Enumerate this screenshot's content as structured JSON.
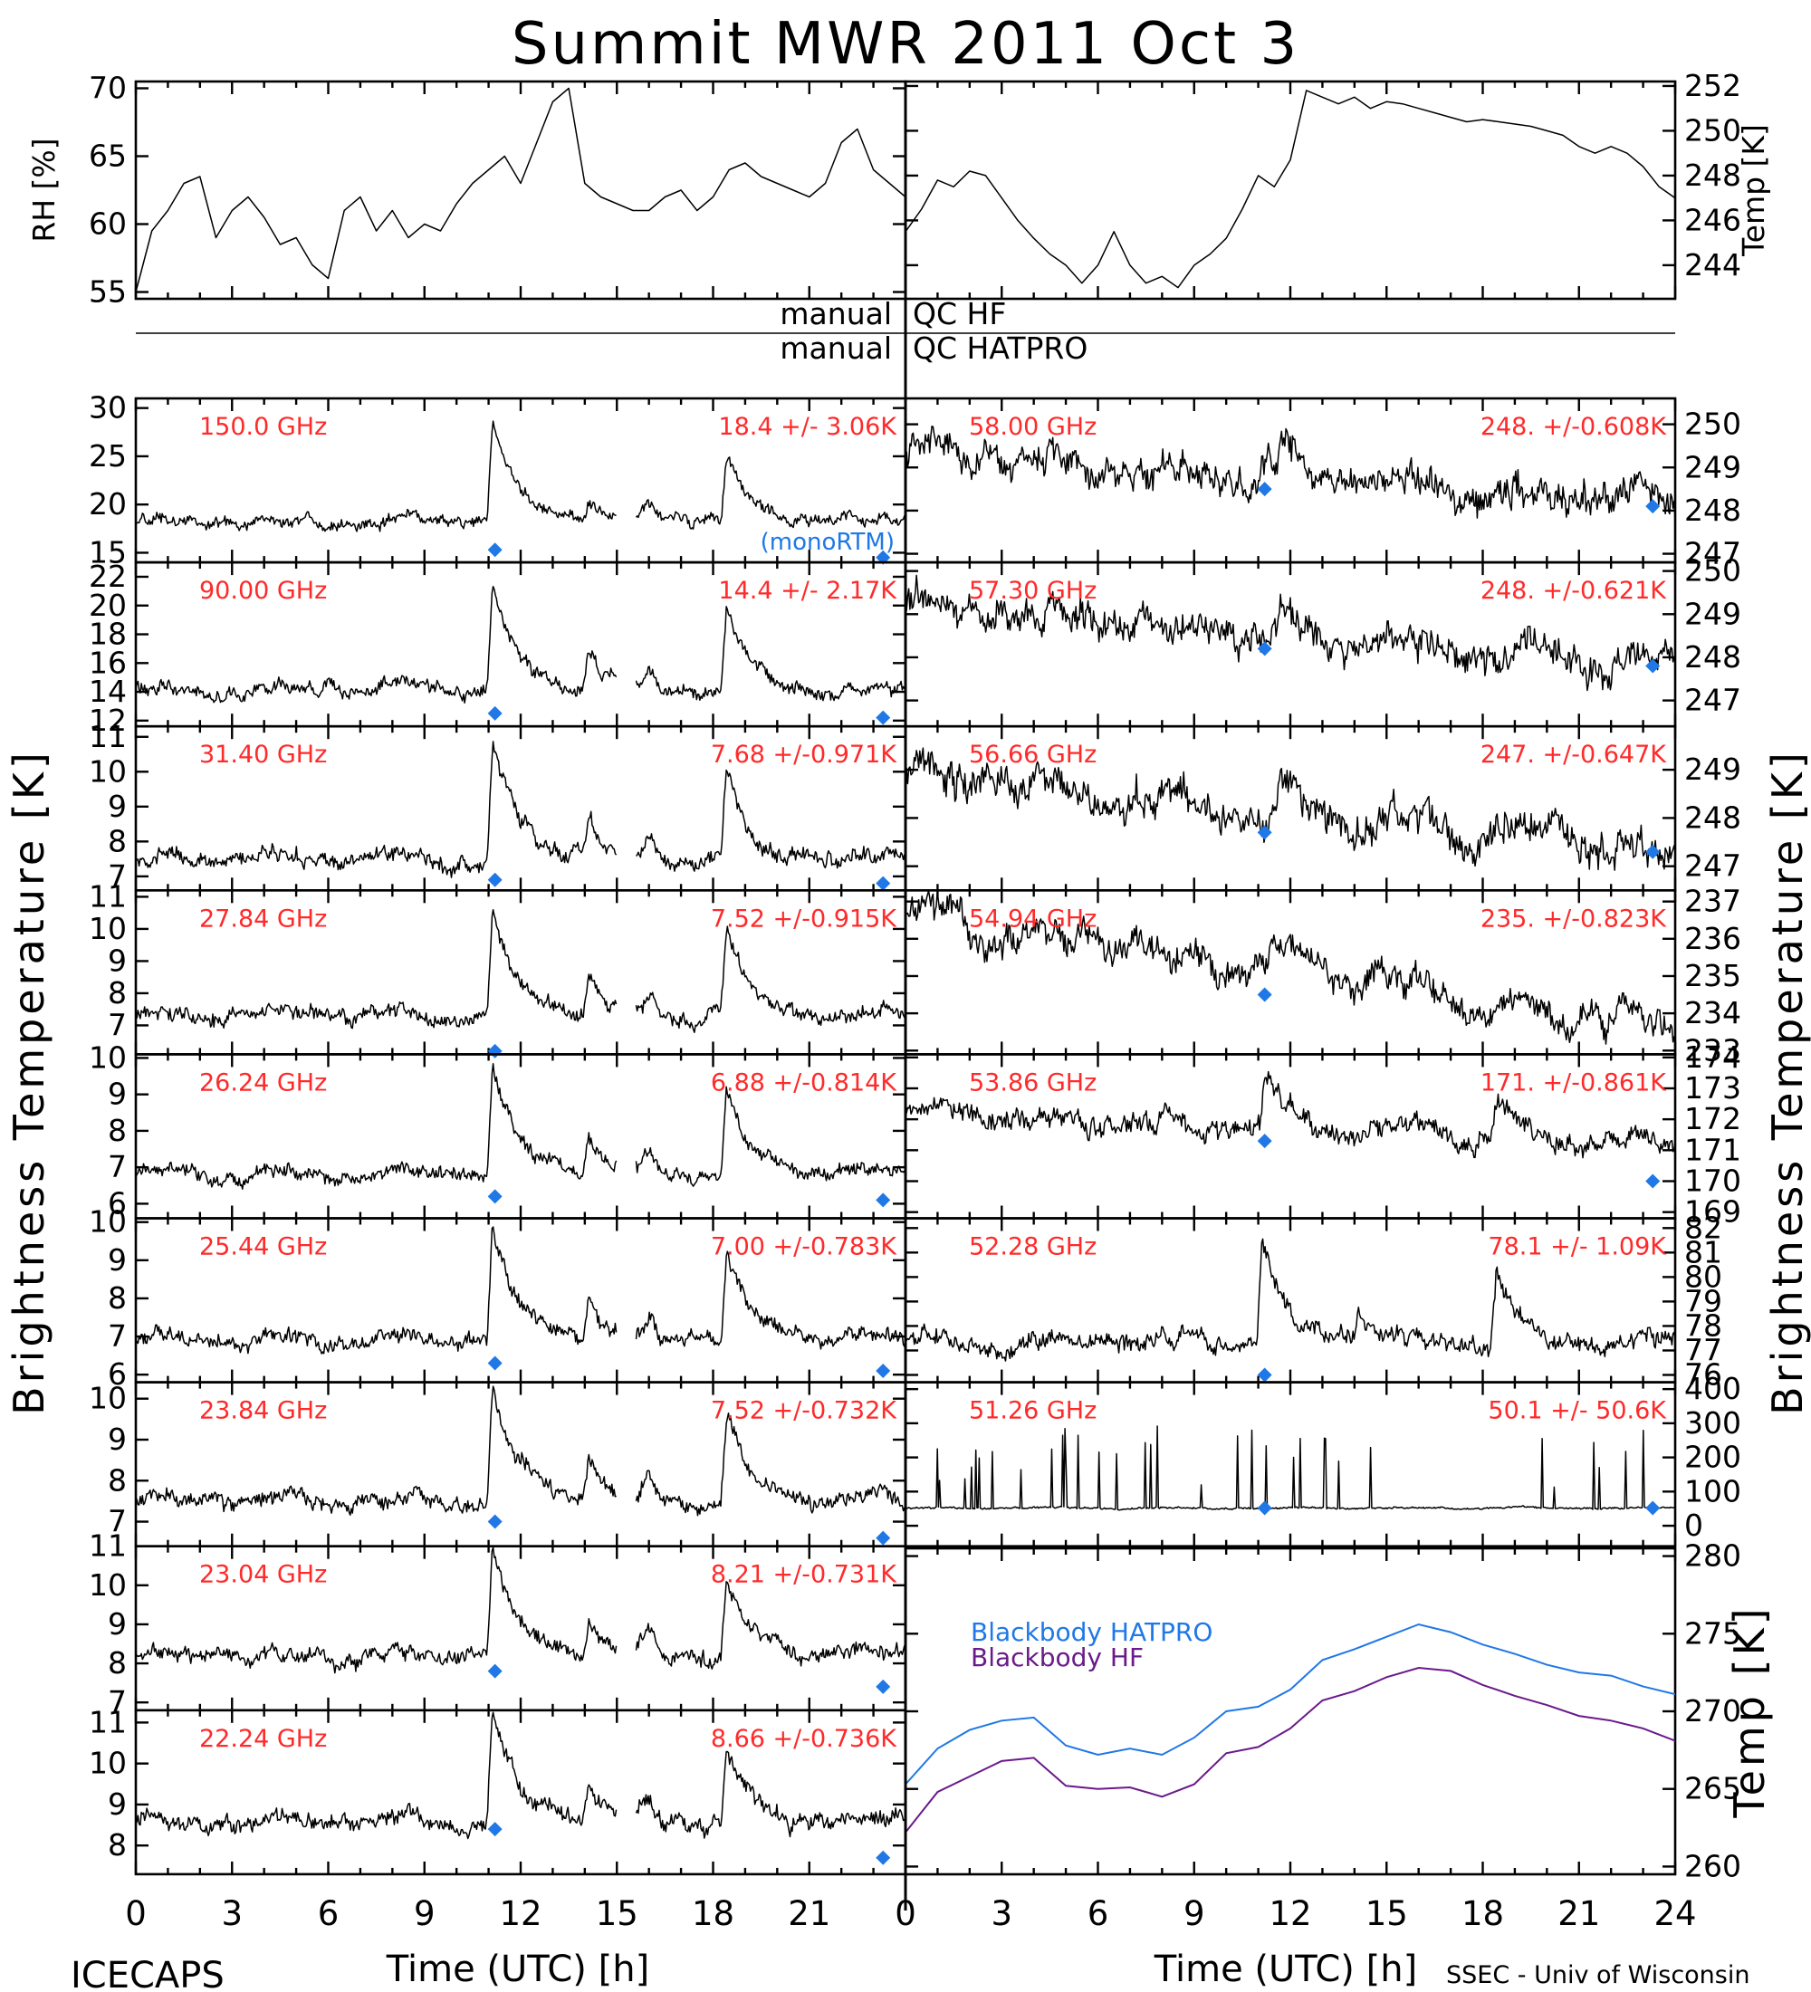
{
  "title": "Summit MWR 2011 Oct  3",
  "footer": {
    "left": "ICECAPS",
    "xlabel": "Time (UTC) [h]",
    "right": "SSEC - Univ of Wisconsin"
  },
  "side_labels": {
    "left": "Brightness Temperature [K]",
    "right": "Brightness Temperature [K]"
  },
  "qc": {
    "row1": {
      "left": "manual",
      "right": "QC HF"
    },
    "row2": {
      "left": "manual",
      "right": "QC HATPRO"
    }
  },
  "x_ticks": [
    "0",
    "3",
    "6",
    "9",
    "12",
    "15",
    "18",
    "21",
    "0",
    "3",
    "6",
    "9",
    "12",
    "15",
    "18",
    "21",
    "24"
  ],
  "chart_data": [
    {
      "id": "rh",
      "type": "line",
      "xlim": [
        0,
        24
      ],
      "ylim": [
        54.5,
        70.5
      ],
      "ylabel": "RH [%]",
      "yticks": [
        55,
        60,
        65,
        70
      ],
      "x": [
        0,
        0.5,
        1,
        1.5,
        2,
        2.5,
        3,
        3.5,
        4,
        4.5,
        5,
        5.5,
        6,
        6.5,
        7,
        7.5,
        8,
        8.5,
        9,
        9.5,
        10,
        10.5,
        11,
        11.5,
        12,
        12.5,
        13,
        13.5,
        14,
        14.5,
        15,
        15.5,
        16,
        16.5,
        17,
        17.5,
        18,
        18.5,
        19,
        19.5,
        20,
        20.5,
        21,
        21.5,
        22,
        22.5,
        23,
        23.5,
        24
      ],
      "y": [
        55,
        59.5,
        61,
        63,
        63.5,
        59,
        61,
        62,
        60.5,
        58.5,
        59,
        57,
        56,
        61,
        62,
        59.5,
        61,
        59,
        60,
        59.5,
        61.5,
        63,
        64,
        65,
        63,
        66,
        69,
        70,
        63,
        62,
        61.5,
        61,
        61,
        62,
        62.5,
        61,
        62,
        64,
        64.5,
        63.5,
        63,
        62.5,
        62,
        63,
        66,
        67,
        64,
        63,
        62
      ]
    },
    {
      "id": "temp",
      "type": "line",
      "xlim": [
        0,
        24
      ],
      "ylim": [
        242.5,
        252.2
      ],
      "ylabel": "Temp [K]",
      "yticks": [
        244,
        246,
        248,
        250,
        252
      ],
      "x": [
        0,
        0.5,
        1,
        1.5,
        2,
        2.5,
        3,
        3.5,
        4,
        4.5,
        5,
        5.5,
        6,
        6.5,
        7,
        7.5,
        8,
        8.5,
        9,
        9.5,
        10,
        10.5,
        11,
        11.5,
        12,
        12.5,
        13,
        13.5,
        14,
        14.5,
        15,
        15.5,
        16,
        16.5,
        17,
        17.5,
        18,
        18.5,
        19,
        19.5,
        20,
        20.5,
        21,
        21.5,
        22,
        22.5,
        23,
        23.5,
        24
      ],
      "y": [
        245.5,
        246.5,
        247.8,
        247.5,
        248.2,
        248,
        247,
        246,
        245.2,
        244.5,
        244,
        243.2,
        244,
        245.5,
        244,
        243.2,
        243.5,
        243,
        244,
        244.5,
        245.2,
        246.5,
        248,
        247.5,
        248.7,
        251.8,
        251.5,
        251.2,
        251.5,
        251,
        251.3,
        251.2,
        251,
        250.8,
        250.6,
        250.4,
        250.5,
        250.4,
        250.3,
        250.2,
        250,
        249.8,
        249.3,
        249,
        249.3,
        249,
        248.4,
        247.5,
        247
      ]
    },
    {
      "id": "ch150",
      "type": "line",
      "freq": "150.0 GHz",
      "stat": "18.4 +/-  3.06K",
      "xlim": [
        0,
        24
      ],
      "ylim": [
        14,
        31
      ],
      "yticks": [
        15,
        20,
        25,
        30
      ],
      "base": 18.3,
      "noise": 0.9,
      "peaks": [
        [
          11.0,
          10,
          0.9
        ],
        [
          14.0,
          2,
          0.6
        ],
        [
          18.3,
          7,
          0.8
        ]
      ],
      "gap": [
        15.0,
        15.6
      ],
      "dip": [
        16.0,
        1.5
      ],
      "markers": [
        {
          "x": 11.2,
          "y": 15.3
        },
        {
          "x": 23.3,
          "y": 14.5
        }
      ],
      "mono_label": "(monoRTM)"
    },
    {
      "id": "ch90",
      "type": "line",
      "freq": "90.00 GHz",
      "stat": "14.4 +/-  2.17K",
      "xlim": [
        0,
        24
      ],
      "ylim": [
        11.6,
        23
      ],
      "yticks": [
        12,
        14,
        16,
        18,
        20,
        22
      ],
      "base": 14.1,
      "noise": 0.7,
      "peaks": [
        [
          11.0,
          7.5,
          0.9
        ],
        [
          14.0,
          2.5,
          0.6
        ],
        [
          18.3,
          6,
          0.8
        ]
      ],
      "gap": [
        15.0,
        15.6
      ],
      "dip": [
        16.0,
        1.3
      ],
      "markers": [
        {
          "x": 11.2,
          "y": 12.5
        },
        {
          "x": 23.3,
          "y": 12.2
        }
      ]
    },
    {
      "id": "ch3140",
      "type": "line",
      "freq": "31.40 GHz",
      "stat": "7.68 +/-0.971K",
      "xlim": [
        0,
        24
      ],
      "ylim": [
        6.6,
        11.3
      ],
      "yticks": [
        7,
        8,
        9,
        10,
        11
      ],
      "base": 7.5,
      "noise": 0.35,
      "peaks": [
        [
          11.0,
          3.3,
          0.9
        ],
        [
          14.0,
          1.2,
          0.6
        ],
        [
          18.3,
          2.8,
          0.8
        ]
      ],
      "gap": [
        15.0,
        15.6
      ],
      "dip": [
        16.0,
        0.6
      ],
      "markers": [
        {
          "x": 11.2,
          "y": 6.9
        },
        {
          "x": 23.3,
          "y": 6.8
        }
      ]
    },
    {
      "id": "ch2784",
      "type": "line",
      "freq": "27.84 GHz",
      "stat": "7.52 +/-0.915K",
      "xlim": [
        0,
        24
      ],
      "ylim": [
        6.1,
        11.2
      ],
      "yticks": [
        7,
        8,
        9,
        10,
        11
      ],
      "base": 7.3,
      "noise": 0.35,
      "peaks": [
        [
          11.0,
          3.2,
          0.9
        ],
        [
          14.0,
          1.2,
          0.6
        ],
        [
          18.3,
          2.7,
          0.8
        ]
      ],
      "gap": [
        15.0,
        15.6
      ],
      "dip": [
        16.0,
        0.6
      ],
      "markers": [
        {
          "x": 11.2,
          "y": 6.2
        }
      ]
    },
    {
      "id": "ch2624",
      "type": "line",
      "freq": "26.24 GHz",
      "stat": "6.88 +/-0.814K",
      "xlim": [
        0,
        24
      ],
      "ylim": [
        5.6,
        10.1
      ],
      "yticks": [
        6,
        7,
        8,
        9,
        10
      ],
      "base": 6.8,
      "noise": 0.3,
      "peaks": [
        [
          11.0,
          3.1,
          0.9
        ],
        [
          14.0,
          1.0,
          0.6
        ],
        [
          18.3,
          2.5,
          0.8
        ]
      ],
      "gap": [
        15.0,
        15.6
      ],
      "dip": [
        16.0,
        0.6
      ],
      "markers": [
        {
          "x": 11.2,
          "y": 6.2
        },
        {
          "x": 23.3,
          "y": 6.1
        }
      ]
    },
    {
      "id": "ch2544",
      "type": "line",
      "freq": "25.44 GHz",
      "stat": "7.00 +/-0.783K",
      "xlim": [
        0,
        24
      ],
      "ylim": [
        5.8,
        10.1
      ],
      "yticks": [
        6,
        7,
        8,
        9,
        10
      ],
      "base": 6.9,
      "noise": 0.3,
      "peaks": [
        [
          11.0,
          3.0,
          0.9
        ],
        [
          14.0,
          1.0,
          0.6
        ],
        [
          18.3,
          2.5,
          0.8
        ]
      ],
      "gap": [
        15.0,
        15.6
      ],
      "dip": [
        16.0,
        0.6
      ],
      "markers": [
        {
          "x": 11.2,
          "y": 6.3
        },
        {
          "x": 23.3,
          "y": 6.1
        }
      ]
    },
    {
      "id": "ch2384",
      "type": "line",
      "freq": "23.84 GHz",
      "stat": "7.52 +/-0.732K",
      "xlim": [
        0,
        24
      ],
      "ylim": [
        6.4,
        10.4
      ],
      "yticks": [
        7,
        8,
        9,
        10
      ],
      "base": 7.5,
      "noise": 0.3,
      "peaks": [
        [
          11.0,
          2.8,
          0.9
        ],
        [
          14.0,
          0.9,
          0.6
        ],
        [
          18.3,
          2.1,
          0.8
        ]
      ],
      "gap": [
        15.0,
        15.6
      ],
      "dip": [
        16.0,
        0.5
      ],
      "markers": [
        {
          "x": 11.2,
          "y": 7.0
        },
        {
          "x": 23.3,
          "y": 6.6
        }
      ]
    },
    {
      "id": "ch2304",
      "type": "line",
      "freq": "23.04 GHz",
      "stat": "8.21 +/-0.731K",
      "xlim": [
        0,
        24
      ],
      "ylim": [
        6.8,
        11.0
      ],
      "yticks": [
        7,
        8,
        9,
        10,
        11
      ],
      "base": 8.2,
      "noise": 0.3,
      "peaks": [
        [
          11.0,
          2.8,
          0.9
        ],
        [
          14.0,
          0.9,
          0.6
        ],
        [
          18.3,
          2.0,
          0.8
        ]
      ],
      "gap": [
        15.0,
        15.6
      ],
      "dip": [
        16.0,
        0.5
      ],
      "markers": [
        {
          "x": 11.2,
          "y": 7.8
        },
        {
          "x": 23.3,
          "y": 7.4
        }
      ]
    },
    {
      "id": "ch2224",
      "type": "line",
      "freq": "22.24 GHz",
      "stat": "8.66 +/-0.736K",
      "xlim": [
        0,
        24
      ],
      "ylim": [
        7.3,
        11.3
      ],
      "yticks": [
        8,
        9,
        10,
        11
      ],
      "base": 8.6,
      "noise": 0.32,
      "peaks": [
        [
          11.0,
          2.6,
          0.9
        ],
        [
          14.0,
          0.9,
          0.6
        ],
        [
          18.3,
          1.9,
          0.8
        ]
      ],
      "gap": [
        15.0,
        15.6
      ],
      "dip": [
        16.0,
        0.5
      ],
      "markers": [
        {
          "x": 11.2,
          "y": 8.4
        },
        {
          "x": 23.3,
          "y": 7.7
        }
      ]
    },
    {
      "id": "ch5800",
      "type": "line",
      "freq": "58.00 GHz",
      "stat": "248. +/-0.608K",
      "xlim": [
        0,
        24
      ],
      "ylim": [
        246.8,
        250.6
      ],
      "yticks": [
        247,
        248,
        249,
        250
      ],
      "trend": [
        249.3,
        248.2
      ],
      "noise": 0.55,
      "peaks": [
        [
          11.6,
          0.8,
          0.8
        ]
      ],
      "markers": [
        {
          "x": 11.2,
          "y": 248.5
        },
        {
          "x": 23.3,
          "y": 248.1
        }
      ]
    },
    {
      "id": "ch5730",
      "type": "line",
      "freq": "57.30 GHz",
      "stat": "248. +/-0.621K",
      "xlim": [
        0,
        24
      ],
      "ylim": [
        246.4,
        250.2
      ],
      "yticks": [
        247,
        248,
        249,
        250
      ],
      "trend": [
        249.1,
        247.8
      ],
      "noise": 0.55,
      "peaks": [
        [
          11.6,
          0.8,
          0.8
        ]
      ],
      "markers": [
        {
          "x": 11.2,
          "y": 248.2
        },
        {
          "x": 23.3,
          "y": 247.8
        }
      ]
    },
    {
      "id": "ch5686",
      "type": "line",
      "freq": "56.66 GHz",
      "stat": "247. +/-0.647K",
      "xlim": [
        0,
        24
      ],
      "ylim": [
        246.5,
        249.9
      ],
      "yticks": [
        247,
        248,
        249
      ],
      "trend": [
        248.9,
        247.2
      ],
      "noise": 0.55,
      "peaks": [
        [
          11.6,
          0.7,
          0.8
        ]
      ],
      "markers": [
        {
          "x": 11.2,
          "y": 247.7
        },
        {
          "x": 23.3,
          "y": 247.3
        }
      ]
    },
    {
      "id": "ch5494",
      "type": "line",
      "freq": "54.94 GHz",
      "stat": "235. +/-0.823K",
      "xlim": [
        0,
        24
      ],
      "ylim": [
        232.9,
        237.3
      ],
      "yticks": [
        233,
        234,
        235,
        236,
        237
      ],
      "trend": [
        236.6,
        233.6
      ],
      "noise": 0.6,
      "peaks": [
        [
          11.3,
          0.6,
          1.0
        ]
      ],
      "markers": [
        {
          "x": 11.2,
          "y": 234.5
        }
      ]
    },
    {
      "id": "ch5386",
      "type": "line",
      "freq": "53.86 GHz",
      "stat": "171. +/-0.861K",
      "xlim": [
        0,
        24
      ],
      "ylim": [
        168.8,
        174.1
      ],
      "yticks": [
        169,
        170,
        171,
        172,
        173,
        174
      ],
      "trend": [
        172.2,
        171.2
      ],
      "noise": 0.5,
      "peaks": [
        [
          11.1,
          1.9,
          0.8
        ],
        [
          18.3,
          1.2,
          0.8
        ]
      ],
      "markers": [
        {
          "x": 11.2,
          "y": 171.3
        },
        {
          "x": 23.3,
          "y": 170.0
        }
      ]
    },
    {
      "id": "ch5228",
      "type": "line",
      "freq": "52.28 GHz",
      "stat": "78.1 +/-  1.09K",
      "xlim": [
        0,
        24
      ],
      "ylim": [
        75.7,
        82.4
      ],
      "yticks": [
        76,
        77,
        78,
        79,
        80,
        81,
        82
      ],
      "base": 77.3,
      "noise": 0.55,
      "peaks": [
        [
          11.0,
          4.4,
          0.9
        ],
        [
          14.0,
          1.3,
          0.6
        ],
        [
          18.3,
          3.0,
          0.8
        ]
      ],
      "markers": [
        {
          "x": 11.2,
          "y": 76.0
        }
      ]
    },
    {
      "id": "ch5126",
      "type": "line",
      "freq": "51.26 GHz",
      "stat": "50.1 +/-  50.6K",
      "xlim": [
        0,
        24
      ],
      "ylim": [
        -60,
        420
      ],
      "yticks": [
        0,
        100,
        200,
        300,
        400
      ],
      "base": 52,
      "noise": 4,
      "spikes": true,
      "markers": [
        {
          "x": 11.2,
          "y": 52
        },
        {
          "x": 23.3,
          "y": 52
        }
      ]
    },
    {
      "id": "blackbody",
      "type": "line",
      "xlim": [
        0,
        24
      ],
      "ylim": [
        259.5,
        280.5
      ],
      "ylabel": "Temp [K]",
      "yticks": [
        260,
        265,
        270,
        275,
        280
      ],
      "x": [
        0,
        1,
        2,
        3,
        4,
        5,
        6,
        7,
        8,
        9,
        10,
        11,
        12,
        13,
        14,
        15,
        16,
        17,
        18,
        19,
        20,
        21,
        22,
        23,
        24
      ],
      "series": [
        {
          "name": "Blackbody HATPRO",
          "color": "#1f78e6",
          "values": [
            265.3,
            267.6,
            268.8,
            269.4,
            269.6,
            267.8,
            267.2,
            267.6,
            267.2,
            268.3,
            270.0,
            270.3,
            271.4,
            273.3,
            274.0,
            274.8,
            275.6,
            275.1,
            274.3,
            273.7,
            273.0,
            272.5,
            272.3,
            271.6,
            271.1
          ]
        },
        {
          "name": "Blackbody HF",
          "color": "#6a1a8a",
          "values": [
            262.2,
            264.8,
            265.8,
            266.8,
            267.0,
            265.2,
            265.0,
            265.1,
            264.5,
            265.3,
            267.3,
            267.7,
            268.9,
            270.7,
            271.3,
            272.2,
            272.8,
            272.6,
            271.7,
            271.0,
            270.4,
            269.7,
            269.4,
            268.9,
            268.1
          ]
        }
      ]
    }
  ]
}
